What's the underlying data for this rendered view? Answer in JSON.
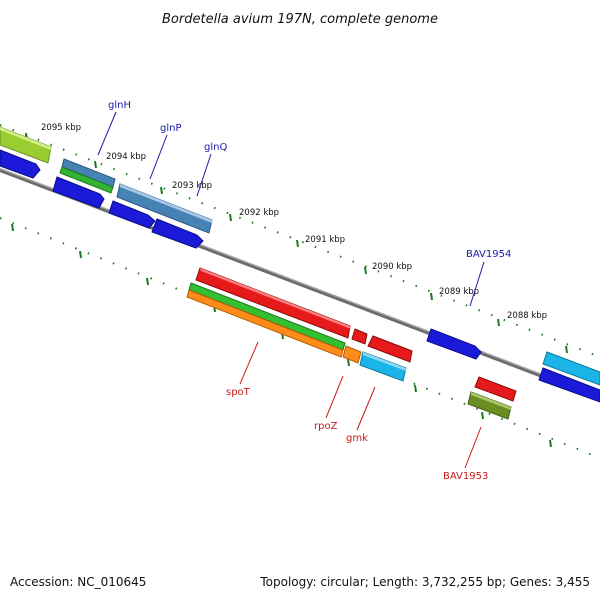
{
  "title": "Bordetella avium 197N, complete genome",
  "footer": {
    "accession": "Accession: NC_010645",
    "summary": "Topology: circular; Length: 3,732,255 bp; Genes: 3,455"
  },
  "colors": {
    "backbone": "#808080",
    "tick": "#1f7a1f",
    "plus_label": "#1a1aa8",
    "minus_label": "#cc1a1a"
  },
  "scale_labels": [
    "2095 kbp",
    "2094 kbp",
    "2093 kbp",
    "2092 kbp",
    "2091 kbp",
    "2090 kbp",
    "2089 kbp",
    "2088 kbp"
  ],
  "gene_labels": {
    "glnH": "glnH",
    "glnP": "glnP",
    "glnQ": "glnQ",
    "bav1954": "BAV1954",
    "spoT": "spoT",
    "rpoZ": "rpoZ",
    "gmk": "gmk",
    "bav1953": "BAV1953"
  }
}
